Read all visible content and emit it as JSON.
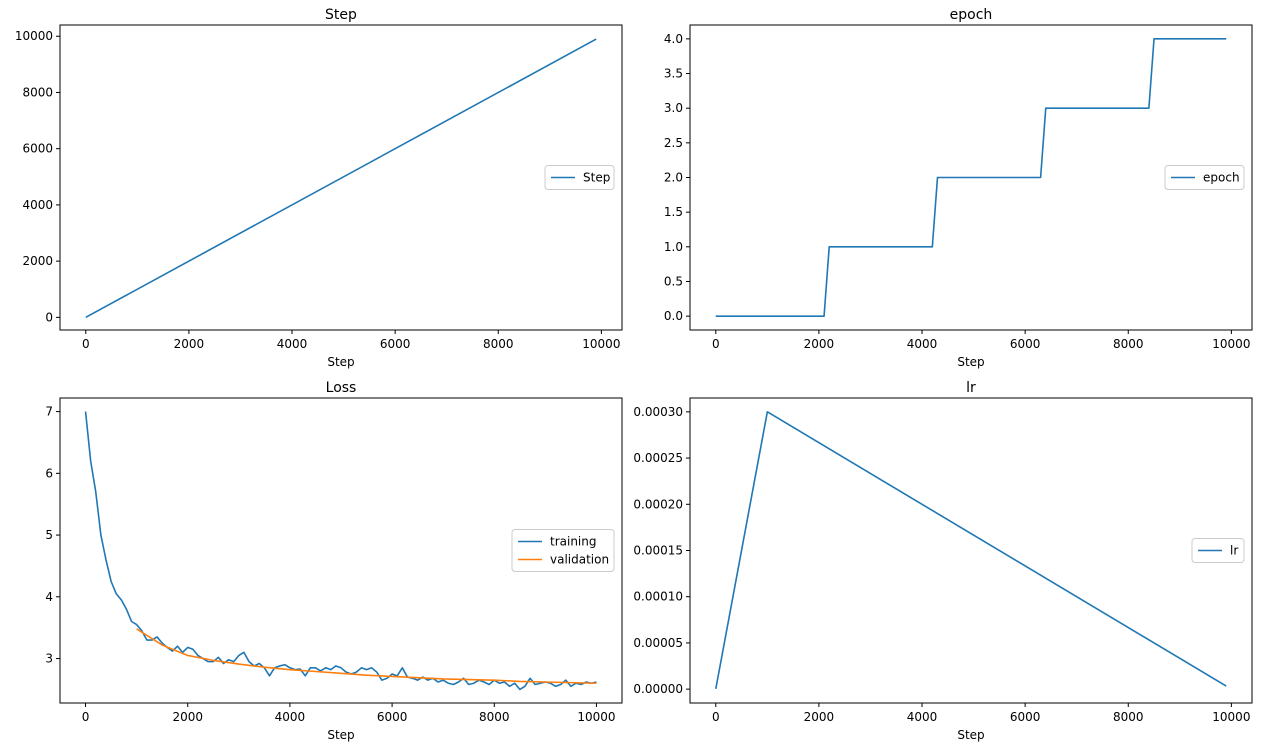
{
  "chart_data": [
    {
      "type": "line",
      "title": "Step",
      "xlabel": "Step",
      "ylabel": "",
      "xlim": [
        -500,
        10400
      ],
      "ylim": [
        -450,
        10400
      ],
      "xticks": [
        0,
        2000,
        4000,
        6000,
        8000,
        10000
      ],
      "xtick_labels": [
        "0",
        "2000",
        "4000",
        "6000",
        "8000",
        "10000"
      ],
      "yticks": [
        0,
        2000,
        4000,
        6000,
        8000,
        10000
      ],
      "ytick_labels": [
        "0",
        "2000",
        "4000",
        "6000",
        "8000",
        "10000"
      ],
      "legend_position": "center-right",
      "series": [
        {
          "name": "Step",
          "color": "#1f77b4",
          "x": [
            0,
            9900
          ],
          "y": [
            0,
            9900
          ]
        }
      ]
    },
    {
      "type": "line",
      "title": "epoch",
      "xlabel": "Step",
      "ylabel": "",
      "xlim": [
        -500,
        10400
      ],
      "ylim": [
        -0.2,
        4.2
      ],
      "xticks": [
        0,
        2000,
        4000,
        6000,
        8000,
        10000
      ],
      "xtick_labels": [
        "0",
        "2000",
        "4000",
        "6000",
        "8000",
        "10000"
      ],
      "yticks": [
        0,
        0.5,
        1,
        1.5,
        2,
        2.5,
        3,
        3.5,
        4
      ],
      "ytick_labels": [
        "0.0",
        "0.5",
        "1.0",
        "1.5",
        "2.0",
        "2.5",
        "3.0",
        "3.5",
        "4.0"
      ],
      "legend_position": "center-right",
      "series": [
        {
          "name": "epoch",
          "color": "#1f77b4",
          "x": [
            0,
            2100,
            2200,
            4200,
            4300,
            6300,
            6400,
            8400,
            8500,
            9900
          ],
          "y": [
            0,
            0,
            1,
            1,
            2,
            2,
            3,
            3,
            4,
            4
          ]
        }
      ]
    },
    {
      "type": "line",
      "title": "Loss",
      "xlabel": "Step",
      "ylabel": "",
      "xlim": [
        -500,
        10500
      ],
      "ylim": [
        2.28,
        7.22
      ],
      "xticks": [
        0,
        2000,
        4000,
        6000,
        8000,
        10000
      ],
      "xtick_labels": [
        "0",
        "2000",
        "4000",
        "6000",
        "8000",
        "10000"
      ],
      "yticks": [
        3,
        4,
        5,
        6,
        7
      ],
      "ytick_labels": [
        "3",
        "4",
        "5",
        "6",
        "7"
      ],
      "legend_position": "center-right",
      "series": [
        {
          "name": "training",
          "color": "#1f77b4",
          "x": [
            0,
            100,
            200,
            300,
            400,
            500,
            600,
            700,
            800,
            900,
            1000,
            1100,
            1200,
            1300,
            1400,
            1500,
            1600,
            1700,
            1800,
            1900,
            2000,
            2100,
            2200,
            2300,
            2400,
            2500,
            2600,
            2700,
            2800,
            2900,
            3000,
            3100,
            3200,
            3300,
            3400,
            3500,
            3600,
            3700,
            3800,
            3900,
            4000,
            4100,
            4200,
            4300,
            4400,
            4500,
            4600,
            4700,
            4800,
            4900,
            5000,
            5100,
            5200,
            5300,
            5400,
            5500,
            5600,
            5700,
            5800,
            5900,
            6000,
            6100,
            6200,
            6300,
            6400,
            6500,
            6600,
            6700,
            6800,
            6900,
            7000,
            7100,
            7200,
            7300,
            7400,
            7500,
            7600,
            7700,
            7800,
            7900,
            8000,
            8100,
            8200,
            8300,
            8400,
            8500,
            8600,
            8700,
            8800,
            8900,
            9000,
            9100,
            9200,
            9300,
            9400,
            9500,
            9600,
            9700,
            9800,
            9900,
            10000
          ],
          "y": [
            7.0,
            6.2,
            5.7,
            5.0,
            4.6,
            4.25,
            4.05,
            3.95,
            3.8,
            3.6,
            3.55,
            3.45,
            3.3,
            3.3,
            3.35,
            3.25,
            3.18,
            3.12,
            3.2,
            3.1,
            3.18,
            3.15,
            3.05,
            3.0,
            2.95,
            2.95,
            3.02,
            2.92,
            2.98,
            2.95,
            3.05,
            3.1,
            2.95,
            2.88,
            2.92,
            2.85,
            2.72,
            2.85,
            2.88,
            2.9,
            2.85,
            2.82,
            2.83,
            2.72,
            2.85,
            2.85,
            2.8,
            2.85,
            2.82,
            2.88,
            2.85,
            2.78,
            2.75,
            2.78,
            2.85,
            2.82,
            2.85,
            2.78,
            2.65,
            2.68,
            2.75,
            2.72,
            2.85,
            2.7,
            2.68,
            2.65,
            2.7,
            2.65,
            2.68,
            2.62,
            2.65,
            2.6,
            2.58,
            2.62,
            2.68,
            2.58,
            2.6,
            2.65,
            2.62,
            2.58,
            2.65,
            2.6,
            2.62,
            2.55,
            2.6,
            2.5,
            2.55,
            2.68,
            2.58,
            2.6,
            2.62,
            2.6,
            2.55,
            2.58,
            2.65,
            2.55,
            2.6,
            2.58,
            2.62,
            2.6,
            2.62
          ]
        },
        {
          "name": "validation",
          "color": "#ff7f0e",
          "x": [
            1000,
            1500,
            2000,
            2500,
            3000,
            3500,
            4000,
            4500,
            5000,
            5500,
            6000,
            6500,
            7000,
            7500,
            8000,
            8500,
            9000,
            9500,
            10000
          ],
          "y": [
            3.48,
            3.22,
            3.05,
            2.97,
            2.91,
            2.86,
            2.82,
            2.79,
            2.76,
            2.73,
            2.71,
            2.69,
            2.67,
            2.66,
            2.65,
            2.63,
            2.62,
            2.61,
            2.6
          ]
        }
      ]
    },
    {
      "type": "line",
      "title": "lr",
      "xlabel": "Step",
      "ylabel": "",
      "xlim": [
        -500,
        10400
      ],
      "ylim": [
        -1.5e-05,
        0.000315
      ],
      "xticks": [
        0,
        2000,
        4000,
        6000,
        8000,
        10000
      ],
      "xtick_labels": [
        "0",
        "2000",
        "4000",
        "6000",
        "8000",
        "10000"
      ],
      "yticks": [
        0,
        5e-05,
        0.0001,
        0.00015,
        0.0002,
        0.00025,
        0.0003
      ],
      "ytick_labels": [
        "0.00000",
        "0.00005",
        "0.00010",
        "0.00015",
        "0.00020",
        "0.00025",
        "0.00030"
      ],
      "legend_position": "center-right",
      "series": [
        {
          "name": "lr",
          "color": "#1f77b4",
          "x": [
            0,
            1000,
            9900
          ],
          "y": [
            3e-07,
            0.0003,
            3.3e-06
          ]
        }
      ]
    }
  ]
}
